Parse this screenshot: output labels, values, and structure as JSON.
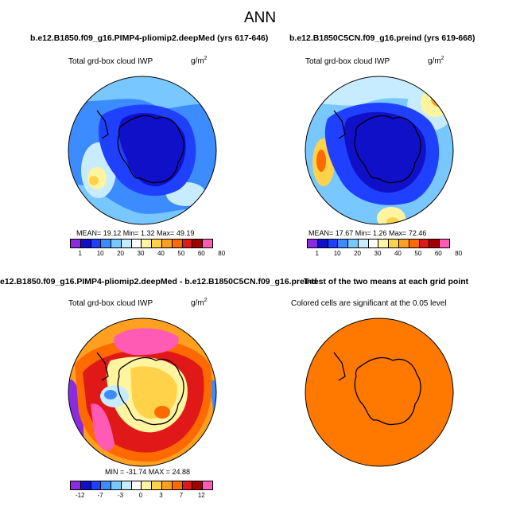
{
  "title": "ANN",
  "palette_abs": [
    "#8a2be2",
    "#1010c8",
    "#2040ff",
    "#3c8cff",
    "#78c8ff",
    "#c8ecff",
    "#ffffff",
    "#fff5a0",
    "#ffd24a",
    "#ffa020",
    "#ff6a00",
    "#e01818",
    "#a00000",
    "#ff5ab4"
  ],
  "palette_diff": [
    "#8a2be2",
    "#1010c8",
    "#2040ff",
    "#3c8cff",
    "#78c8ff",
    "#c8ecff",
    "#ffffff",
    "#fff5a0",
    "#ffd24a",
    "#ffa020",
    "#ff6a00",
    "#e01818",
    "#a00000",
    "#ff5ab4"
  ],
  "panels": {
    "p1": {
      "title": "b.e12.B1850.f09_g16.PIMP4-pliomip2.deepMed (yrs 617-646)",
      "variable": "Total grd-box cloud IWP",
      "units_base": "g/m",
      "units_exp": "2",
      "stats": "MEAN=  19.12   Min=    1.32   Max=   49.19",
      "ticks": [
        "1",
        "10",
        "20",
        "30",
        "40",
        "50",
        "60",
        "80"
      ]
    },
    "p2": {
      "title": "b.e12.B1850C5CN.f09_g16.preind (yrs 619-668)",
      "variable": "Total grd-box cloud IWP",
      "units_base": "g/m",
      "units_exp": "2",
      "stats": "MEAN=  17.67   Min=    1.26   Max=   72.46",
      "ticks": [
        "1",
        "10",
        "20",
        "30",
        "40",
        "50",
        "60",
        "80"
      ]
    },
    "p3": {
      "title": "e12.B1850.f09_g16.PIMP4-pliomip2.deepMed - b.e12.B1850C5CN.f09_g16.preind",
      "variable": "Total grd-box cloud IWP",
      "units_base": "g/m",
      "units_exp": "2",
      "stats": "MIN = -31.74  MAX =  24.88",
      "ticks": [
        "-12",
        "-7",
        "-3",
        "0",
        "3",
        "7",
        "12"
      ]
    },
    "p4": {
      "title": "T-test of the two means at each grid point",
      "subtitle": "Colored cells are significant at the 0.05 level",
      "fill_color": "#ff7800"
    }
  },
  "colors": {
    "land_outline": "#000000",
    "ttest_fill": "#ff7800"
  }
}
